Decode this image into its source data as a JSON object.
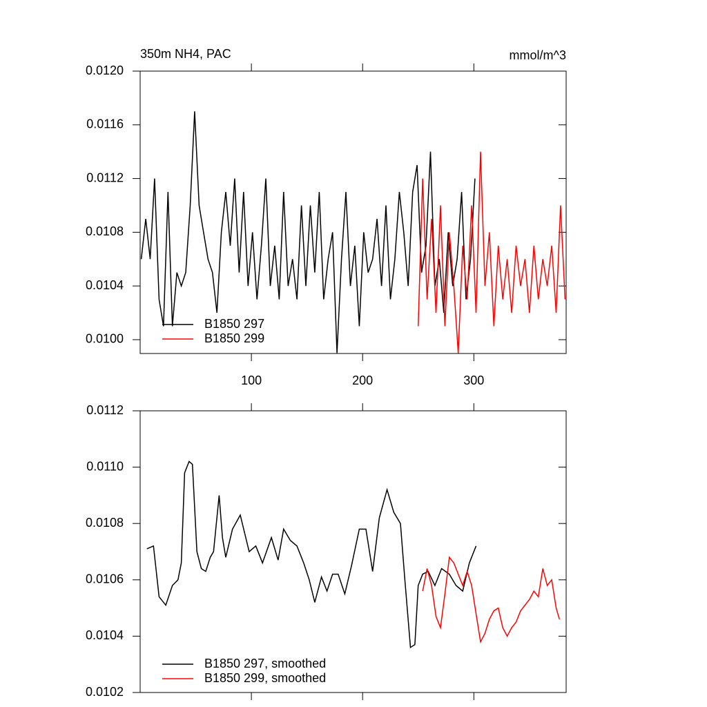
{
  "chart_data": [
    {
      "type": "line",
      "title": "350m NH4, PAC",
      "subtitle": "mmol/m^3",
      "xlim": [
        0,
        383
      ],
      "xticks": [
        100,
        200,
        300
      ],
      "xtick_labels": true,
      "ylim": [
        0.009897,
        0.012
      ],
      "yticks": [
        {
          "value": 0.012,
          "label": "0.0120"
        },
        0.0116,
        0.0112,
        0.0108,
        0.0104,
        {
          "value": 0.01,
          "label": "0.0100"
        }
      ],
      "series": [
        {
          "name": "B1850 297",
          "color": "#000000",
          "x": [
            1,
            5,
            9,
            13,
            17,
            21,
            25,
            29,
            33,
            37,
            41,
            45,
            49,
            53,
            57,
            61,
            65,
            69,
            73,
            77,
            81,
            85,
            89,
            93,
            97,
            101,
            105,
            109,
            113,
            117,
            121,
            125,
            129,
            133,
            137,
            141,
            145,
            149,
            153,
            157,
            161,
            165,
            169,
            173,
            177,
            181,
            185,
            189,
            193,
            197,
            201,
            205,
            209,
            213,
            217,
            221,
            225,
            229,
            233,
            237,
            241,
            245,
            249,
            253,
            257,
            261,
            265,
            269,
            273,
            277,
            281,
            285,
            289,
            293,
            297,
            301
          ],
          "values": [
            0.0106,
            0.0109,
            0.0106,
            0.0112,
            0.0103,
            0.0101,
            0.0111,
            0.0101,
            0.0105,
            0.0104,
            0.0105,
            0.011,
            0.0117,
            0.011,
            0.0108,
            0.0106,
            0.0105,
            0.0102,
            0.0108,
            0.0111,
            0.0107,
            0.0112,
            0.0105,
            0.0111,
            0.0104,
            0.0108,
            0.0103,
            0.0107,
            0.0112,
            0.0104,
            0.0107,
            0.0103,
            0.0111,
            0.0104,
            0.0106,
            0.0103,
            0.011,
            0.0104,
            0.011,
            0.0105,
            0.0111,
            0.0103,
            0.0106,
            0.0108,
            0.0099,
            0.0106,
            0.0111,
            0.0104,
            0.0107,
            0.0101,
            0.0108,
            0.0105,
            0.0106,
            0.0109,
            0.0104,
            0.011,
            0.0103,
            0.0106,
            0.0111,
            0.0108,
            0.0104,
            0.0111,
            0.0113,
            0.0105,
            0.0107,
            0.0114,
            0.0104,
            0.0106,
            0.0102,
            0.0108,
            0.0104,
            0.0106,
            0.0111,
            0.0103,
            0.0106,
            0.0112
          ]
        },
        {
          "name": "B1850 299",
          "color": "#ff0000",
          "x": [
            250,
            254,
            258,
            262,
            266,
            270,
            274,
            278,
            282,
            286,
            290,
            294,
            298,
            302,
            306,
            310,
            314,
            318,
            322,
            326,
            330,
            334,
            338,
            342,
            346,
            350,
            354,
            358,
            362,
            366,
            370,
            374,
            378,
            382
          ],
          "values": [
            0.0101,
            0.0112,
            0.0103,
            0.0109,
            0.0102,
            0.011,
            0.0101,
            0.0108,
            0.0104,
            0.0099,
            0.0107,
            0.0103,
            0.011,
            0.0102,
            0.0114,
            0.0104,
            0.0108,
            0.0101,
            0.0107,
            0.0103,
            0.0106,
            0.0102,
            0.0107,
            0.0104,
            0.0106,
            0.0102,
            0.0107,
            0.0103,
            0.0106,
            0.0104,
            0.0107,
            0.0102,
            0.011,
            0.0103
          ]
        }
      ]
    },
    {
      "type": "line",
      "xlim": [
        0,
        383
      ],
      "xticks": [
        100,
        200,
        300
      ],
      "xtick_labels": false,
      "ylim": [
        0.0102,
        0.0112
      ],
      "yticks": [
        0.0112,
        {
          "value": 0.011,
          "label": "0.0110"
        },
        0.0108,
        0.0106,
        0.0104,
        0.0102
      ],
      "series": [
        {
          "name": "B1850 297, smoothed",
          "color": "#000000",
          "x": [
            6,
            12,
            17,
            23,
            29,
            34,
            37,
            40,
            44,
            47,
            51,
            55,
            59,
            63,
            66,
            71,
            74,
            77,
            83,
            90,
            98,
            104,
            110,
            118,
            124,
            129,
            135,
            141,
            147,
            152,
            157,
            163,
            168,
            173,
            178,
            184,
            190,
            197,
            203,
            209,
            215,
            222,
            228,
            234,
            238,
            243,
            247,
            250,
            254,
            259,
            265,
            271,
            278,
            284,
            290,
            296,
            302
          ],
          "values": [
            0.01071,
            0.01072,
            0.01054,
            0.01051,
            0.01058,
            0.0106,
            0.01066,
            0.01098,
            0.01102,
            0.01101,
            0.0107,
            0.01064,
            0.01063,
            0.01068,
            0.0107,
            0.0109,
            0.01075,
            0.01068,
            0.01078,
            0.01083,
            0.0107,
            0.01072,
            0.01066,
            0.01075,
            0.01067,
            0.01078,
            0.01074,
            0.01072,
            0.01066,
            0.0106,
            0.01052,
            0.01061,
            0.01056,
            0.01062,
            0.01062,
            0.01055,
            0.01065,
            0.01078,
            0.01078,
            0.01063,
            0.01082,
            0.01092,
            0.01084,
            0.0108,
            0.0106,
            0.01036,
            0.01037,
            0.01058,
            0.01062,
            0.01063,
            0.01058,
            0.01064,
            0.01062,
            0.01058,
            0.01056,
            0.01066,
            0.01072
          ]
        },
        {
          "name": "B1850 299, smoothed",
          "color": "#ff0000",
          "x": [
            254,
            258,
            262,
            266,
            270,
            274,
            278,
            282,
            286,
            290,
            294,
            298,
            302,
            306,
            310,
            314,
            318,
            322,
            326,
            330,
            334,
            338,
            342,
            346,
            350,
            354,
            358,
            362,
            366,
            370,
            374,
            377
          ],
          "values": [
            0.01056,
            0.01064,
            0.01058,
            0.01047,
            0.01043,
            0.01055,
            0.01068,
            0.01066,
            0.01062,
            0.01058,
            0.01063,
            0.01058,
            0.01048,
            0.01038,
            0.01041,
            0.01046,
            0.01049,
            0.0105,
            0.01043,
            0.0104,
            0.01043,
            0.01045,
            0.01049,
            0.01051,
            0.01053,
            0.01056,
            0.01054,
            0.01064,
            0.01058,
            0.0106,
            0.0105,
            0.01046
          ]
        }
      ]
    }
  ]
}
